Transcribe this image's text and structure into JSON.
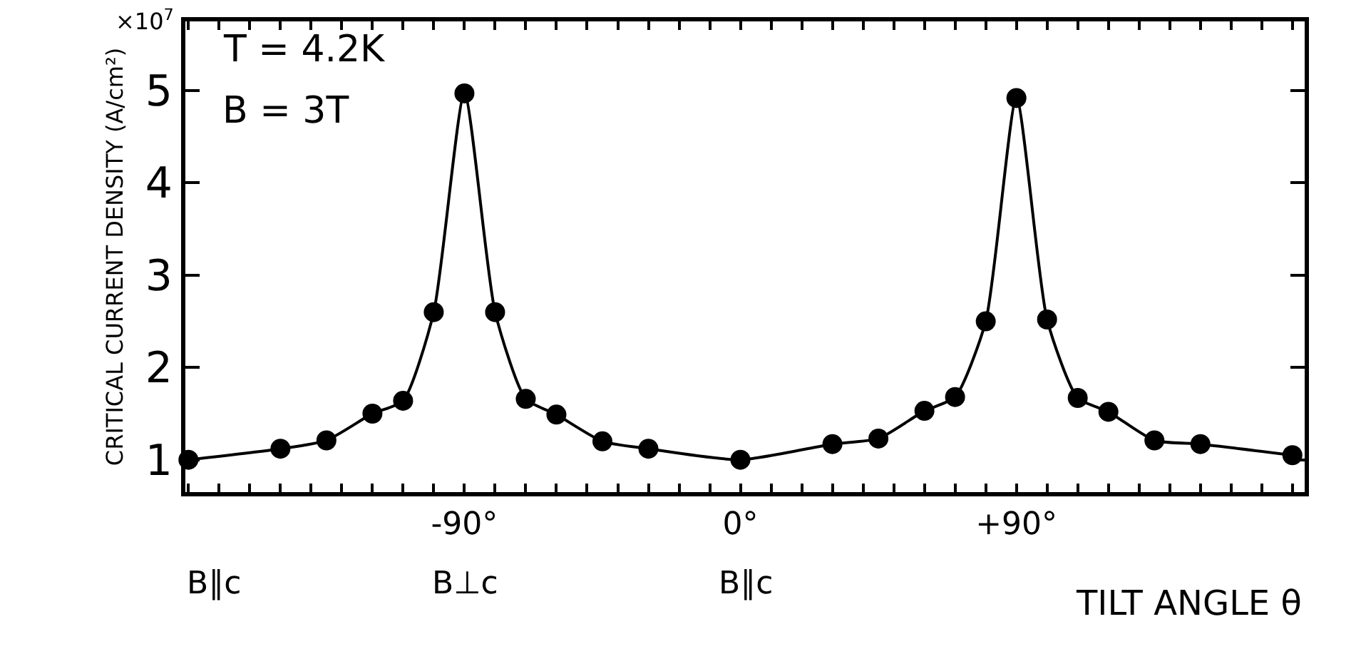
{
  "chart_data": {
    "type": "line",
    "xlabel": "TILT ANGLE θ",
    "ylabel": "CRITICAL CURRENT DENSITY (A/cm²)",
    "annotations": [
      "×10$^{7}$",
      "T = 4.2K",
      "B = 3T",
      "B∥c",
      "B⊥c",
      "B∥c"
    ],
    "x": [
      -180,
      -150,
      -135,
      -120,
      -110,
      -100,
      -90,
      -80,
      -70,
      -60,
      -45,
      -30,
      0,
      30,
      45,
      60,
      70,
      80,
      90,
      100,
      110,
      120,
      135,
      150,
      180
    ],
    "series": [
      {
        "color": "#000000",
        "values": [
          1.0,
          1.12,
          1.21,
          1.5,
          1.64,
          2.6,
          4.97,
          2.6,
          1.66,
          1.49,
          1.2,
          1.12,
          1.0,
          1.17,
          1.23,
          1.53,
          1.68,
          2.5,
          4.92,
          2.52,
          1.67,
          1.52,
          1.21,
          1.17,
          1.05
        ]
      }
    ],
    "xlim": [
      -181,
      184
    ],
    "xticks": [
      {
        "value": -180,
        "label": null
      },
      {
        "value": -170,
        "label": null
      },
      {
        "value": -160,
        "label": null
      },
      {
        "value": -150,
        "label": null
      },
      {
        "value": -140,
        "label": null
      },
      {
        "value": -130,
        "label": null
      },
      {
        "value": -120,
        "label": null
      },
      {
        "value": -110,
        "label": null
      },
      {
        "value": -100,
        "label": null
      },
      {
        "value": -90,
        "label": "-90°"
      },
      {
        "value": -80,
        "label": null
      },
      {
        "value": -70,
        "label": null
      },
      {
        "value": -60,
        "label": null
      },
      {
        "value": -50,
        "label": null
      },
      {
        "value": -40,
        "label": null
      },
      {
        "value": -30,
        "label": null
      },
      {
        "value": -20,
        "label": null
      },
      {
        "value": -10,
        "label": null
      },
      {
        "value": 0,
        "label": "0°"
      },
      {
        "value": 10,
        "label": null
      },
      {
        "value": 20,
        "label": null
      },
      {
        "value": 30,
        "label": null
      },
      {
        "value": 40,
        "label": null
      },
      {
        "value": 50,
        "label": null
      },
      {
        "value": 60,
        "label": null
      },
      {
        "value": 70,
        "label": null
      },
      {
        "value": 80,
        "label": null
      },
      {
        "value": 90,
        "label": "+90°"
      },
      {
        "value": 100,
        "label": null
      },
      {
        "value": 110,
        "label": null
      },
      {
        "value": 120,
        "label": null
      },
      {
        "value": 130,
        "label": null
      },
      {
        "value": 140,
        "label": null
      },
      {
        "value": 150,
        "label": null
      },
      {
        "value": 160,
        "label": null
      },
      {
        "value": 170,
        "label": null
      },
      {
        "value": 180,
        "label": null
      }
    ],
    "ylim": [
      0.65,
      5.75
    ],
    "yticks": [
      1,
      2,
      3,
      4,
      5
    ],
    "marker": "circle",
    "line_style": "solid"
  }
}
